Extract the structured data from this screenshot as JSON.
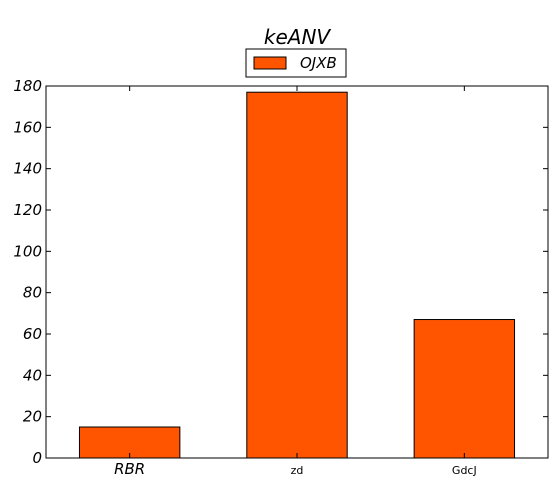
{
  "chart_data": {
    "type": "bar",
    "title": "keANV",
    "xlabel": "",
    "ylabel": "",
    "categories": [
      "RBR",
      "zd",
      "GdcJ"
    ],
    "category_italic": [
      true,
      false,
      false
    ],
    "series": [
      {
        "name": "OJXB",
        "values": [
          15,
          177,
          67
        ],
        "color": "#ff5500"
      }
    ],
    "ylim": [
      0,
      180
    ],
    "yticks": [
      0,
      20,
      40,
      60,
      80,
      100,
      120,
      140,
      160,
      180
    ],
    "grid": false,
    "legend": "top-center"
  }
}
